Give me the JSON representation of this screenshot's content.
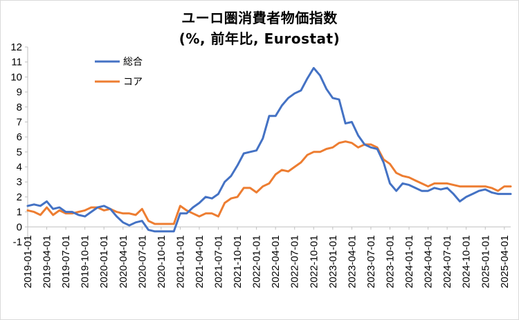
{
  "chart_data": {
    "type": "line",
    "title": "ユーロ圏消費者物価指数",
    "subtitle": "(%, 前年比, Eurostat)",
    "ylim": [
      -1,
      12
    ],
    "yticks": [
      -1,
      0,
      1,
      2,
      3,
      4,
      5,
      6,
      7,
      8,
      9,
      10,
      11,
      12
    ],
    "xticks": [
      "2019-01-01",
      "2019-04-01",
      "2019-07-01",
      "2019-10-01",
      "2020-01-01",
      "2020-04-01",
      "2020-07-01",
      "2020-10-01",
      "2021-01-01",
      "2021-04-01",
      "2021-07-01",
      "2021-10-01",
      "2022-01-01",
      "2022-04-01",
      "2022-07-01",
      "2022-10-01",
      "2023-01-01",
      "2023-04-01",
      "2023-07-01",
      "2023-10-01",
      "2024-01-01",
      "2024-04-01",
      "2024-07-01",
      "2024-10-01",
      "2025-01-01",
      "2025-04-01"
    ],
    "x_start": "2019-01",
    "x_end": "2025-05",
    "grid": false,
    "legend_position": "top-left",
    "series": [
      {
        "name": "総合",
        "color": "#4472c4",
        "values": [
          1.4,
          1.5,
          1.4,
          1.7,
          1.2,
          1.3,
          1.0,
          1.0,
          0.8,
          0.7,
          1.0,
          1.3,
          1.4,
          1.2,
          0.7,
          0.3,
          0.1,
          0.3,
          0.4,
          -0.2,
          -0.3,
          -0.3,
          -0.3,
          -0.3,
          0.9,
          0.9,
          1.3,
          1.6,
          2.0,
          1.9,
          2.2,
          3.0,
          3.4,
          4.1,
          4.9,
          5.0,
          5.1,
          5.9,
          7.4,
          7.4,
          8.1,
          8.6,
          8.9,
          9.1,
          9.9,
          10.6,
          10.1,
          9.2,
          8.6,
          8.5,
          6.9,
          7.0,
          6.1,
          5.5,
          5.3,
          5.2,
          4.3,
          2.9,
          2.4,
          2.9,
          2.8,
          2.6,
          2.4,
          2.4,
          2.6,
          2.5,
          2.6,
          2.2,
          1.7,
          2.0,
          2.2,
          2.4,
          2.5,
          2.3,
          2.2,
          2.2,
          2.2
        ]
      },
      {
        "name": "コア",
        "color": "#ed7d31",
        "values": [
          1.1,
          1.0,
          0.8,
          1.3,
          0.8,
          1.1,
          0.9,
          0.9,
          1.0,
          1.1,
          1.3,
          1.3,
          1.1,
          1.2,
          1.0,
          0.9,
          0.9,
          0.8,
          1.2,
          0.4,
          0.2,
          0.2,
          0.2,
          0.2,
          1.4,
          1.1,
          0.9,
          0.7,
          0.9,
          0.9,
          0.7,
          1.6,
          1.9,
          2.0,
          2.6,
          2.6,
          2.3,
          2.7,
          2.9,
          3.5,
          3.8,
          3.7,
          4.0,
          4.3,
          4.8,
          5.0,
          5.0,
          5.2,
          5.3,
          5.6,
          5.7,
          5.6,
          5.3,
          5.5,
          5.5,
          5.3,
          4.5,
          4.2,
          3.6,
          3.4,
          3.3,
          3.1,
          2.9,
          2.7,
          2.9,
          2.9,
          2.9,
          2.8,
          2.7,
          2.7,
          2.7,
          2.7,
          2.7,
          2.6,
          2.4,
          2.7,
          2.7
        ]
      }
    ]
  }
}
